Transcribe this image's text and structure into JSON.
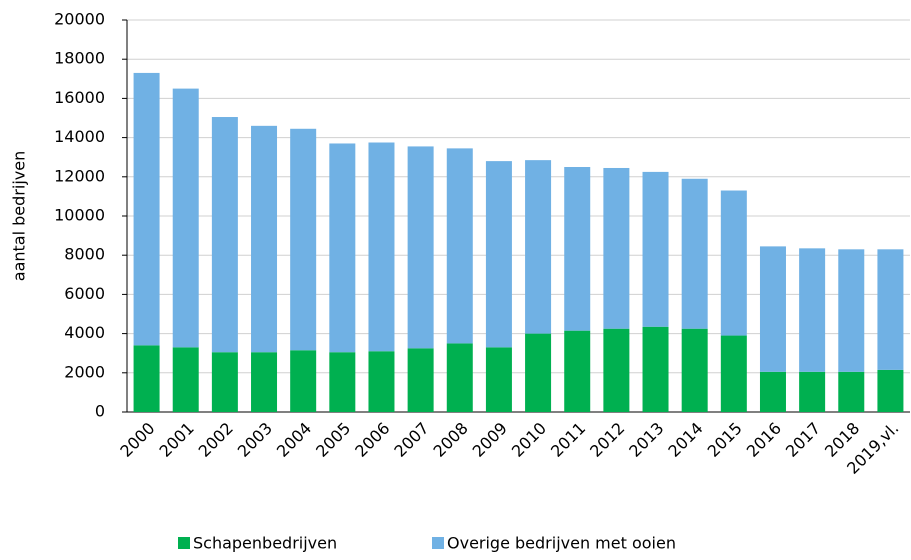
{
  "chart_data": {
    "type": "stacked_bar",
    "y_label": "aantal bedrijven",
    "categories": [
      "2000",
      "2001",
      "2002",
      "2003",
      "2004",
      "2005",
      "2006",
      "2007",
      "2008",
      "2009",
      "2010",
      "2011",
      "2012",
      "2013",
      "2014",
      "2015",
      "2016",
      "2017",
      "2018",
      "2019,vl."
    ],
    "series": [
      {
        "name": "Schapenbedrijven",
        "color": "#00b050",
        "values": [
          3400,
          3300,
          3050,
          3050,
          3150,
          3050,
          3100,
          3250,
          3500,
          3300,
          4000,
          4150,
          4250,
          4350,
          4250,
          3900,
          2050,
          2050,
          2050,
          2150
        ]
      },
      {
        "name": "Overige bedrijven met ooien",
        "color": "#70b1e4",
        "values": [
          13900,
          13200,
          12000,
          11550,
          11300,
          10650,
          10650,
          10300,
          9950,
          9500,
          8850,
          8350,
          8200,
          7900,
          7650,
          7400,
          6400,
          6300,
          6250,
          6150
        ]
      }
    ],
    "ylim": [
      0,
      20000
    ],
    "yticks": [
      0,
      2000,
      4000,
      6000,
      8000,
      10000,
      12000,
      14000,
      16000,
      18000,
      20000
    ],
    "grid": true,
    "legend": "bottom"
  }
}
